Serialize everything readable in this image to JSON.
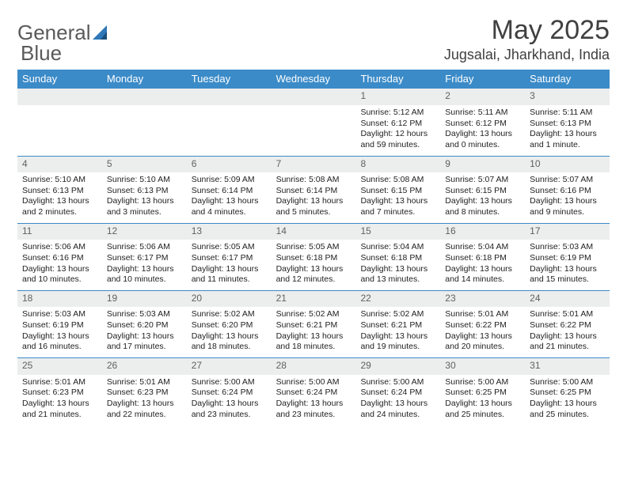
{
  "logo": {
    "text1": "General",
    "text2": "Blue"
  },
  "title": "May 2025",
  "location": "Jugsalai, Jharkhand, India",
  "weekdays": [
    "Sunday",
    "Monday",
    "Tuesday",
    "Wednesday",
    "Thursday",
    "Friday",
    "Saturday"
  ],
  "colors": {
    "header_bar": "#3b8bc8",
    "daynum_bg": "#eceeee",
    "text": "#222222",
    "title_text": "#404040"
  },
  "first_weekday_index": 4,
  "days": [
    {
      "n": 1,
      "sunrise": "5:12 AM",
      "sunset": "6:12 PM",
      "daylight": "12 hours and 59 minutes."
    },
    {
      "n": 2,
      "sunrise": "5:11 AM",
      "sunset": "6:12 PM",
      "daylight": "13 hours and 0 minutes."
    },
    {
      "n": 3,
      "sunrise": "5:11 AM",
      "sunset": "6:13 PM",
      "daylight": "13 hours and 1 minute."
    },
    {
      "n": 4,
      "sunrise": "5:10 AM",
      "sunset": "6:13 PM",
      "daylight": "13 hours and 2 minutes."
    },
    {
      "n": 5,
      "sunrise": "5:10 AM",
      "sunset": "6:13 PM",
      "daylight": "13 hours and 3 minutes."
    },
    {
      "n": 6,
      "sunrise": "5:09 AM",
      "sunset": "6:14 PM",
      "daylight": "13 hours and 4 minutes."
    },
    {
      "n": 7,
      "sunrise": "5:08 AM",
      "sunset": "6:14 PM",
      "daylight": "13 hours and 5 minutes."
    },
    {
      "n": 8,
      "sunrise": "5:08 AM",
      "sunset": "6:15 PM",
      "daylight": "13 hours and 7 minutes."
    },
    {
      "n": 9,
      "sunrise": "5:07 AM",
      "sunset": "6:15 PM",
      "daylight": "13 hours and 8 minutes."
    },
    {
      "n": 10,
      "sunrise": "5:07 AM",
      "sunset": "6:16 PM",
      "daylight": "13 hours and 9 minutes."
    },
    {
      "n": 11,
      "sunrise": "5:06 AM",
      "sunset": "6:16 PM",
      "daylight": "13 hours and 10 minutes."
    },
    {
      "n": 12,
      "sunrise": "5:06 AM",
      "sunset": "6:17 PM",
      "daylight": "13 hours and 10 minutes."
    },
    {
      "n": 13,
      "sunrise": "5:05 AM",
      "sunset": "6:17 PM",
      "daylight": "13 hours and 11 minutes."
    },
    {
      "n": 14,
      "sunrise": "5:05 AM",
      "sunset": "6:18 PM",
      "daylight": "13 hours and 12 minutes."
    },
    {
      "n": 15,
      "sunrise": "5:04 AM",
      "sunset": "6:18 PM",
      "daylight": "13 hours and 13 minutes."
    },
    {
      "n": 16,
      "sunrise": "5:04 AM",
      "sunset": "6:18 PM",
      "daylight": "13 hours and 14 minutes."
    },
    {
      "n": 17,
      "sunrise": "5:03 AM",
      "sunset": "6:19 PM",
      "daylight": "13 hours and 15 minutes."
    },
    {
      "n": 18,
      "sunrise": "5:03 AM",
      "sunset": "6:19 PM",
      "daylight": "13 hours and 16 minutes."
    },
    {
      "n": 19,
      "sunrise": "5:03 AM",
      "sunset": "6:20 PM",
      "daylight": "13 hours and 17 minutes."
    },
    {
      "n": 20,
      "sunrise": "5:02 AM",
      "sunset": "6:20 PM",
      "daylight": "13 hours and 18 minutes."
    },
    {
      "n": 21,
      "sunrise": "5:02 AM",
      "sunset": "6:21 PM",
      "daylight": "13 hours and 18 minutes."
    },
    {
      "n": 22,
      "sunrise": "5:02 AM",
      "sunset": "6:21 PM",
      "daylight": "13 hours and 19 minutes."
    },
    {
      "n": 23,
      "sunrise": "5:01 AM",
      "sunset": "6:22 PM",
      "daylight": "13 hours and 20 minutes."
    },
    {
      "n": 24,
      "sunrise": "5:01 AM",
      "sunset": "6:22 PM",
      "daylight": "13 hours and 21 minutes."
    },
    {
      "n": 25,
      "sunrise": "5:01 AM",
      "sunset": "6:23 PM",
      "daylight": "13 hours and 21 minutes."
    },
    {
      "n": 26,
      "sunrise": "5:01 AM",
      "sunset": "6:23 PM",
      "daylight": "13 hours and 22 minutes."
    },
    {
      "n": 27,
      "sunrise": "5:00 AM",
      "sunset": "6:24 PM",
      "daylight": "13 hours and 23 minutes."
    },
    {
      "n": 28,
      "sunrise": "5:00 AM",
      "sunset": "6:24 PM",
      "daylight": "13 hours and 23 minutes."
    },
    {
      "n": 29,
      "sunrise": "5:00 AM",
      "sunset": "6:24 PM",
      "daylight": "13 hours and 24 minutes."
    },
    {
      "n": 30,
      "sunrise": "5:00 AM",
      "sunset": "6:25 PM",
      "daylight": "13 hours and 25 minutes."
    },
    {
      "n": 31,
      "sunrise": "5:00 AM",
      "sunset": "6:25 PM",
      "daylight": "13 hours and 25 minutes."
    }
  ],
  "labels": {
    "sunrise": "Sunrise:",
    "sunset": "Sunset:",
    "daylight": "Daylight:"
  }
}
